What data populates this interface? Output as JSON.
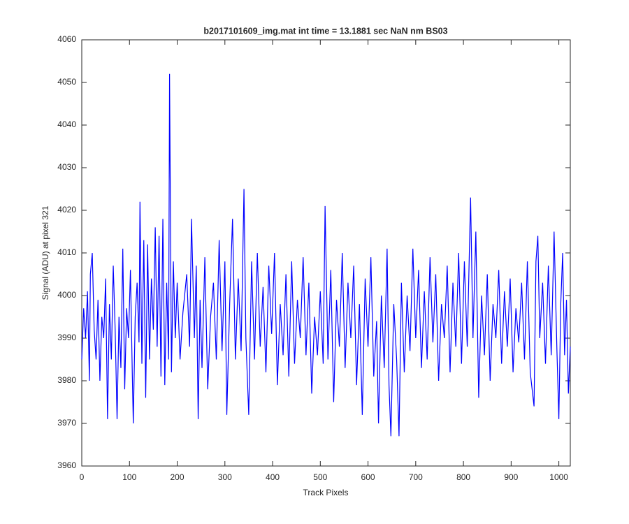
{
  "chart_data": {
    "type": "line",
    "title": "b2017101609_img.mat int time = 13.1881 sec  NaN nm BS03",
    "xlabel": "Track Pixels",
    "ylabel": "Signal (ADU) at pixel 321",
    "xlim": [
      0,
      1024
    ],
    "ylim": [
      3960,
      4060
    ],
    "xticks": [
      0,
      100,
      200,
      300,
      400,
      500,
      600,
      700,
      800,
      900,
      1000
    ],
    "yticks": [
      3960,
      3970,
      3980,
      3990,
      4000,
      4010,
      4020,
      4030,
      4040,
      4050,
      4060
    ],
    "grid": false,
    "series": [
      {
        "color": "#0000ff",
        "x": [
          0,
          4,
          8,
          12,
          16,
          18,
          22,
          26,
          30,
          34,
          38,
          42,
          46,
          50,
          54,
          58,
          62,
          66,
          70,
          74,
          78,
          82,
          86,
          90,
          94,
          98,
          102,
          106,
          108,
          112,
          116,
          120,
          122,
          126,
          130,
          134,
          138,
          142,
          146,
          150,
          154,
          158,
          162,
          166,
          170,
          174,
          178,
          182,
          184,
          188,
          192,
          196,
          200,
          206,
          212,
          220,
          226,
          230,
          236,
          240,
          244,
          248,
          252,
          258,
          264,
          270,
          276,
          282,
          288,
          294,
          300,
          304,
          310,
          316,
          322,
          328,
          334,
          340,
          344,
          350,
          356,
          362,
          368,
          374,
          380,
          386,
          392,
          398,
          404,
          410,
          416,
          422,
          428,
          434,
          440,
          446,
          452,
          458,
          464,
          470,
          476,
          482,
          488,
          494,
          500,
          506,
          510,
          516,
          522,
          528,
          534,
          540,
          546,
          552,
          558,
          564,
          570,
          576,
          582,
          588,
          594,
          600,
          606,
          612,
          618,
          622,
          628,
          634,
          640,
          644,
          648,
          654,
          660,
          665,
          670,
          676,
          682,
          688,
          694,
          700,
          706,
          712,
          718,
          724,
          730,
          736,
          742,
          748,
          754,
          760,
          766,
          772,
          778,
          784,
          790,
          796,
          802,
          808,
          815,
          820,
          826,
          832,
          838,
          844,
          850,
          856,
          862,
          868,
          874,
          880,
          886,
          892,
          898,
          904,
          910,
          916,
          922,
          928,
          934,
          940,
          948,
          952,
          956,
          960,
          966,
          972,
          978,
          984,
          990,
          996,
          1000,
          1004,
          1008,
          1012,
          1016,
          1020,
          1024
        ],
        "values": [
          3985,
          3997,
          3990,
          4001,
          3980,
          4005,
          4010,
          3992,
          3985,
          3999,
          3980,
          3995,
          3990,
          4004,
          3971,
          3998,
          3985,
          4007,
          3992,
          3971,
          3995,
          3983,
          4011,
          3978,
          3997,
          3990,
          4006,
          3981,
          3970,
          3995,
          4003,
          3989,
          4022,
          3984,
          4013,
          3976,
          4012,
          3985,
          4004,
          3992,
          4016,
          3988,
          4014,
          3981,
          4018,
          3979,
          4003,
          3985,
          4052,
          3982,
          4008,
          3990,
          4003,
          3985,
          3996,
          4005,
          3988,
          4018,
          3990,
          4007,
          3971,
          3999,
          3983,
          4009,
          3978,
          3995,
          4003,
          3985,
          4013,
          3987,
          4008,
          3972,
          3998,
          4018,
          3985,
          4004,
          3987,
          4025,
          3990,
          3972,
          4008,
          3985,
          4010,
          3988,
          4002,
          3982,
          4007,
          3991,
          4010,
          3979,
          3998,
          3986,
          4005,
          3981,
          4008,
          3984,
          3999,
          3990,
          4009,
          3986,
          4003,
          3977,
          3995,
          3986,
          4001,
          3984,
          4021,
          3985,
          4006,
          3975,
          3999,
          3988,
          4010,
          3983,
          4003,
          3990,
          4007,
          3979,
          3998,
          3972,
          4004,
          3988,
          4009,
          3981,
          3994,
          3970,
          4000,
          3983,
          4011,
          3979,
          3967,
          3998,
          3985,
          3967,
          4003,
          3982,
          4000,
          3987,
          4011,
          3990,
          4006,
          3983,
          4001,
          3985,
          4009,
          3989,
          4005,
          3980,
          3998,
          3990,
          4007,
          3982,
          4003,
          3988,
          4010,
          3984,
          4008,
          3988,
          4023,
          3990,
          4015,
          3976,
          4000,
          3986,
          4005,
          3980,
          3998,
          3990,
          4006,
          3984,
          4001,
          3988,
          4004,
          3982,
          3997,
          3989,
          4003,
          3985,
          4008,
          3982,
          3974,
          4008,
          4014,
          3990,
          4003,
          3984,
          4007,
          3986,
          4015,
          3987,
          3971,
          3998,
          4010,
          3986,
          3999,
          3977,
          3988
        ]
      }
    ]
  }
}
